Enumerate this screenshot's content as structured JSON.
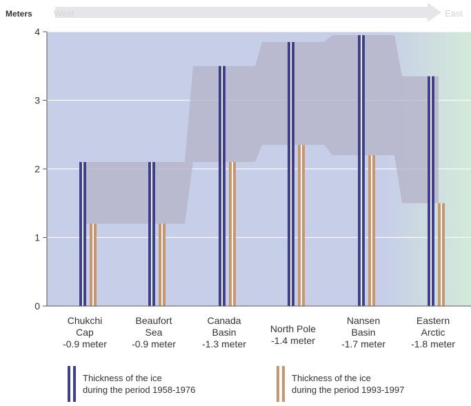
{
  "chart_data": {
    "type": "bar",
    "title": "",
    "ylabel": "Meters",
    "direction": {
      "left": "West",
      "right": "East"
    },
    "ylim": [
      0,
      4
    ],
    "yticks": [
      0,
      1,
      2,
      3,
      4
    ],
    "grid": true,
    "categories": [
      {
        "name": "Chukchi Cap",
        "lines": [
          "Chukchi",
          "Cap",
          "-0.9 meter"
        ]
      },
      {
        "name": "Beaufort Sea",
        "lines": [
          "Beaufort",
          "Sea",
          "-0.9 meter"
        ]
      },
      {
        "name": "Canada Basin",
        "lines": [
          "Canada",
          "Basin",
          "-1.3 meter"
        ]
      },
      {
        "name": "North Pole",
        "lines": [
          "North Pole",
          "-1.4 meter"
        ]
      },
      {
        "name": "Nansen Basin",
        "lines": [
          "Nansen",
          "Basin",
          "-1.7 meter"
        ]
      },
      {
        "name": "Eastern Arctic",
        "lines": [
          "Eastern",
          "Arctic",
          "-1.8 meter"
        ]
      }
    ],
    "series": [
      {
        "name": "Thickness of the ice during the period 1958-1976",
        "color": "#3e3f8f",
        "values": [
          2.1,
          2.1,
          3.5,
          3.85,
          3.95,
          3.35
        ]
      },
      {
        "name": "Thickness of the ice during the period 1993-1997",
        "color": "#c9956b",
        "values": [
          1.2,
          1.2,
          2.1,
          2.35,
          2.2,
          1.5
        ]
      }
    ],
    "legend": {
      "placement": "bottom",
      "items": [
        {
          "line1": "Thickness of the ice",
          "line2": "during the period 1958-1976"
        },
        {
          "line1": "Thickness of the ice",
          "line2": "during the period 1993-1997"
        }
      ]
    },
    "colors": {
      "plot_left": "#c7cfe8",
      "plot_right": "#d3ead8",
      "band": "#b4b2c7",
      "axis": "#555555",
      "header_arrow": "#e6e6ea"
    }
  }
}
